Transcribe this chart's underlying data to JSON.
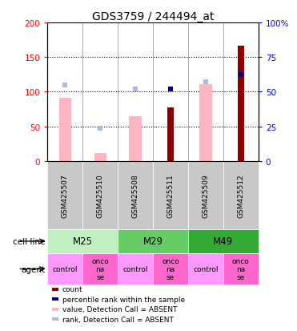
{
  "title": "GDS3759 / 244494_at",
  "samples": [
    "GSM425507",
    "GSM425510",
    "GSM425508",
    "GSM425511",
    "GSM425509",
    "GSM425512"
  ],
  "count_values": [
    null,
    null,
    null,
    77,
    null,
    166
  ],
  "count_color": "#8b0000",
  "rank_values": [
    null,
    null,
    null,
    104,
    null,
    125
  ],
  "rank_color": "#00008b",
  "value_absent": [
    91,
    11,
    65,
    null,
    111,
    null
  ],
  "value_absent_color": "#ffb6c1",
  "rank_absent": [
    110,
    47,
    104,
    null,
    115,
    null
  ],
  "rank_absent_color": "#aabbdd",
  "ylim_left": [
    0,
    200
  ],
  "ylim_right": [
    0,
    100
  ],
  "yticks_left": [
    0,
    50,
    100,
    150,
    200
  ],
  "yticks_right": [
    0,
    25,
    50,
    75,
    100
  ],
  "ytick_labels_right": [
    "0",
    "25",
    "50",
    "75",
    "100%"
  ],
  "cell_line_groups": [
    {
      "label": "M25",
      "start": 0,
      "end": 2,
      "color": "#c0f0c0"
    },
    {
      "label": "M29",
      "start": 2,
      "end": 4,
      "color": "#66cc66"
    },
    {
      "label": "M49",
      "start": 4,
      "end": 6,
      "color": "#33aa33"
    }
  ],
  "agent_labels": [
    "control",
    "onco\nna\nse",
    "control",
    "onco\nna\nse",
    "control",
    "onco\nna\nse"
  ],
  "agent_colors": [
    "#ff99ff",
    "#ff66cc",
    "#ff99ff",
    "#ff66cc",
    "#ff99ff",
    "#ff66cc"
  ],
  "sample_box_color": "#c8c8c8",
  "legend_items": [
    {
      "label": "count",
      "color": "#8b0000"
    },
    {
      "label": "percentile rank within the sample",
      "color": "#00008b"
    },
    {
      "label": "value, Detection Call = ABSENT",
      "color": "#ffb6c1"
    },
    {
      "label": "rank, Detection Call = ABSENT",
      "color": "#aabbdd"
    }
  ],
  "bar_width": 0.35,
  "dot_size": 5
}
